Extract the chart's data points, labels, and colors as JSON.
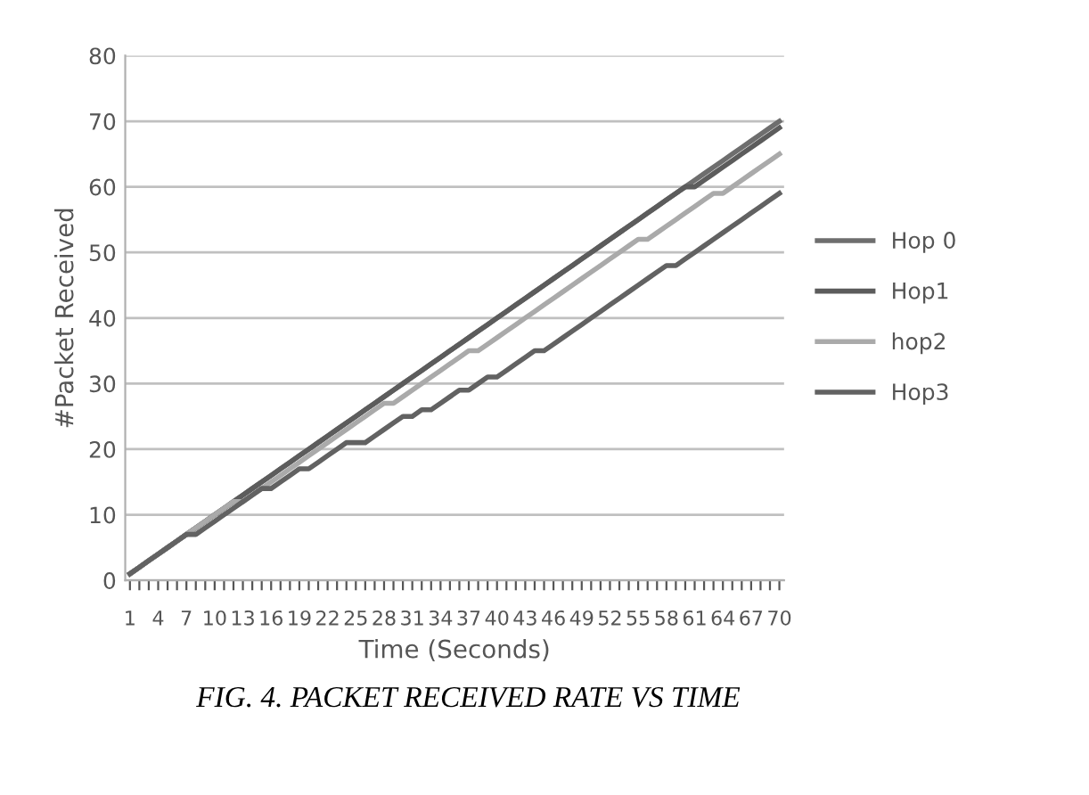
{
  "chart_data": {
    "type": "line",
    "xlabel": "Time (Seconds)",
    "ylabel": "#Packet Received",
    "categories": [
      "1",
      null,
      null,
      "4",
      null,
      null,
      "7",
      null,
      null,
      "10",
      null,
      null,
      "13",
      null,
      null,
      "16",
      null,
      null,
      "19",
      null,
      null,
      "22",
      null,
      null,
      "25",
      null,
      null,
      "28",
      null,
      null,
      "31",
      null,
      null,
      "34",
      null,
      null,
      "37",
      null,
      null,
      "40",
      null,
      null,
      "43",
      null,
      null,
      "46",
      null,
      null,
      "49",
      null,
      null,
      "52",
      null,
      null,
      "55",
      null,
      null,
      "58",
      null,
      null,
      "61",
      null,
      null,
      "64",
      null,
      null,
      "67",
      null,
      null,
      "70"
    ],
    "series": [
      {
        "name": "Hop 0",
        "color": "#6e6e6e",
        "values": [
          1,
          2,
          3,
          4,
          5,
          6,
          7,
          8,
          9,
          10,
          11,
          12,
          13,
          14,
          15,
          16,
          17,
          18,
          19,
          20,
          21,
          22,
          23,
          24,
          25,
          26,
          27,
          28,
          29,
          30,
          31,
          32,
          33,
          34,
          35,
          36,
          37,
          38,
          39,
          40,
          41,
          42,
          43,
          44,
          45,
          46,
          47,
          48,
          49,
          50,
          51,
          52,
          53,
          54,
          55,
          56,
          57,
          58,
          59,
          60,
          61,
          62,
          63,
          64,
          65,
          66,
          67,
          68,
          69,
          70
        ]
      },
      {
        "name": "Hop1",
        "color": "#5c5c5c",
        "values": [
          1,
          2,
          3,
          4,
          5,
          6,
          7,
          8,
          9,
          10,
          11,
          12,
          13,
          14,
          15,
          16,
          17,
          18,
          19,
          20,
          21,
          22,
          23,
          24,
          25,
          26,
          27,
          28,
          29,
          30,
          31,
          32,
          33,
          34,
          35,
          36,
          37,
          38,
          39,
          40,
          41,
          42,
          43,
          44,
          45,
          46,
          47,
          48,
          49,
          50,
          51,
          52,
          53,
          54,
          55,
          56,
          57,
          58,
          59,
          60,
          60,
          61,
          62,
          63,
          64,
          65,
          66,
          67,
          68,
          69
        ]
      },
      {
        "name": "hop2",
        "color": "#aaaaaa",
        "values": [
          1,
          2,
          3,
          4,
          5,
          6,
          7,
          8,
          9,
          10,
          11,
          12,
          12,
          13,
          14,
          15,
          16,
          17,
          18,
          19,
          20,
          21,
          22,
          23,
          24,
          25,
          26,
          27,
          27,
          28,
          29,
          30,
          31,
          32,
          33,
          34,
          35,
          35,
          36,
          37,
          38,
          39,
          40,
          41,
          42,
          43,
          44,
          45,
          46,
          47,
          48,
          49,
          50,
          51,
          52,
          52,
          53,
          54,
          55,
          56,
          57,
          58,
          59,
          59,
          60,
          61,
          62,
          63,
          64,
          65
        ]
      },
      {
        "name": "Hop3",
        "color": "#626262",
        "values": [
          1,
          2,
          3,
          4,
          5,
          6,
          7,
          7,
          8,
          9,
          10,
          11,
          12,
          13,
          14,
          14,
          15,
          16,
          17,
          17,
          18,
          19,
          20,
          21,
          21,
          21,
          22,
          23,
          24,
          25,
          25,
          26,
          26,
          27,
          28,
          29,
          29,
          30,
          31,
          31,
          32,
          33,
          34,
          35,
          35,
          36,
          37,
          38,
          39,
          40,
          41,
          42,
          43,
          44,
          45,
          46,
          47,
          48,
          48,
          49,
          50,
          51,
          52,
          53,
          54,
          55,
          56,
          57,
          58,
          59
        ]
      }
    ],
    "ylim": [
      0,
      80
    ],
    "yticks": [
      0,
      10,
      20,
      30,
      40,
      50,
      60,
      70,
      80
    ],
    "grid": "y",
    "legend": "right",
    "marker": "none",
    "line_style": "solid",
    "annotations": [
      "FIG. 4. PACKET RECEIVED RATE VS TIME"
    ]
  }
}
